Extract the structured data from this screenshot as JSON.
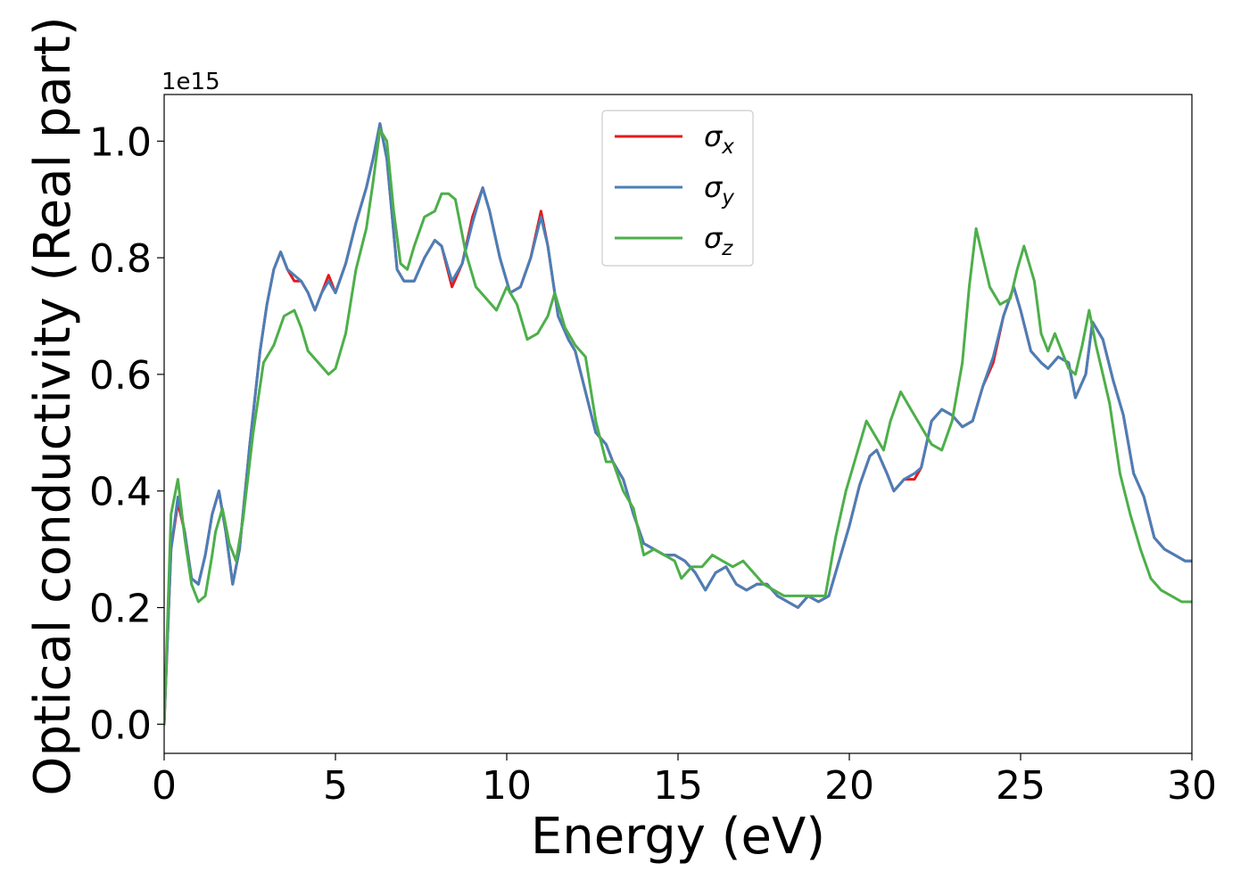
{
  "chart_data": {
    "type": "line",
    "title": "",
    "xlabel": "Energy (eV)",
    "ylabel": "Optical conductivity (Real part)",
    "y_offset_label": "1e15",
    "xlim": [
      0,
      30
    ],
    "ylim": [
      -0.05,
      1.08
    ],
    "xticks": [
      0,
      5,
      10,
      15,
      20,
      25,
      30
    ],
    "xtick_labels": [
      "0",
      "5",
      "10",
      "15",
      "20",
      "25",
      "30"
    ],
    "yticks": [
      0.0,
      0.2,
      0.4,
      0.6,
      0.8,
      1.0
    ],
    "ytick_labels": [
      "0.0",
      "0.2",
      "0.4",
      "0.6",
      "0.8",
      "1.0"
    ],
    "grid": false,
    "legend_position": "top-center",
    "series": [
      {
        "name": "σ_x",
        "label_symbol": "σ",
        "label_sub": "x",
        "color": "#e41a1c",
        "x": [
          0.0,
          0.2,
          0.4,
          0.6,
          0.8,
          1.0,
          1.2,
          1.4,
          1.6,
          1.8,
          2.0,
          2.2,
          2.5,
          2.8,
          3.0,
          3.2,
          3.4,
          3.6,
          3.8,
          4.0,
          4.2,
          4.4,
          4.6,
          4.8,
          5.0,
          5.3,
          5.6,
          5.9,
          6.1,
          6.3,
          6.5,
          6.8,
          7.0,
          7.3,
          7.6,
          7.9,
          8.1,
          8.4,
          8.7,
          9.0,
          9.3,
          9.5,
          9.8,
          10.1,
          10.4,
          10.7,
          11.0,
          11.2,
          11.5,
          11.8,
          12.0,
          12.3,
          12.6,
          12.9,
          13.1,
          13.4,
          13.7,
          14.0,
          14.3,
          14.6,
          14.9,
          15.2,
          15.5,
          15.8,
          16.1,
          16.4,
          16.7,
          17.0,
          17.3,
          17.6,
          17.9,
          18.2,
          18.5,
          18.8,
          19.1,
          19.4,
          19.7,
          20.0,
          20.3,
          20.6,
          20.8,
          21.1,
          21.3,
          21.6,
          21.9,
          22.1,
          22.4,
          22.7,
          23.0,
          23.3,
          23.6,
          23.9,
          24.2,
          24.5,
          24.8,
          25.0,
          25.3,
          25.6,
          25.8,
          26.1,
          26.4,
          26.6,
          26.9,
          27.1,
          27.4,
          27.7,
          28.0,
          28.3,
          28.6,
          28.9,
          29.2,
          29.5,
          29.8,
          30.0
        ],
        "y": [
          0.0,
          0.3,
          0.38,
          0.33,
          0.25,
          0.24,
          0.29,
          0.36,
          0.4,
          0.33,
          0.24,
          0.3,
          0.48,
          0.64,
          0.72,
          0.78,
          0.81,
          0.78,
          0.76,
          0.76,
          0.74,
          0.71,
          0.74,
          0.77,
          0.74,
          0.79,
          0.86,
          0.92,
          0.97,
          1.03,
          0.97,
          0.78,
          0.76,
          0.76,
          0.8,
          0.83,
          0.82,
          0.75,
          0.79,
          0.87,
          0.92,
          0.88,
          0.8,
          0.74,
          0.75,
          0.8,
          0.88,
          0.82,
          0.7,
          0.66,
          0.64,
          0.57,
          0.5,
          0.48,
          0.45,
          0.42,
          0.36,
          0.31,
          0.3,
          0.29,
          0.29,
          0.28,
          0.26,
          0.23,
          0.26,
          0.27,
          0.24,
          0.23,
          0.24,
          0.24,
          0.22,
          0.21,
          0.2,
          0.22,
          0.21,
          0.22,
          0.28,
          0.34,
          0.41,
          0.46,
          0.47,
          0.43,
          0.4,
          0.42,
          0.42,
          0.44,
          0.52,
          0.54,
          0.53,
          0.51,
          0.52,
          0.58,
          0.62,
          0.7,
          0.75,
          0.71,
          0.64,
          0.62,
          0.61,
          0.63,
          0.62,
          0.56,
          0.6,
          0.69,
          0.66,
          0.59,
          0.53,
          0.43,
          0.39,
          0.32,
          0.3,
          0.29,
          0.28,
          0.28
        ]
      },
      {
        "name": "σ_y",
        "label_symbol": "σ",
        "label_sub": "y",
        "color": "#4a7fb8",
        "x": [
          0.0,
          0.2,
          0.4,
          0.6,
          0.8,
          1.0,
          1.2,
          1.4,
          1.6,
          1.8,
          2.0,
          2.2,
          2.5,
          2.8,
          3.0,
          3.2,
          3.4,
          3.6,
          3.8,
          4.0,
          4.2,
          4.4,
          4.6,
          4.8,
          5.0,
          5.3,
          5.6,
          5.9,
          6.1,
          6.3,
          6.5,
          6.8,
          7.0,
          7.3,
          7.6,
          7.9,
          8.1,
          8.4,
          8.7,
          9.0,
          9.3,
          9.5,
          9.8,
          10.1,
          10.4,
          10.7,
          11.0,
          11.2,
          11.5,
          11.8,
          12.0,
          12.3,
          12.6,
          12.9,
          13.1,
          13.4,
          13.7,
          14.0,
          14.3,
          14.6,
          14.9,
          15.2,
          15.5,
          15.8,
          16.1,
          16.4,
          16.7,
          17.0,
          17.3,
          17.6,
          17.9,
          18.2,
          18.5,
          18.8,
          19.1,
          19.4,
          19.7,
          20.0,
          20.3,
          20.6,
          20.8,
          21.1,
          21.3,
          21.6,
          21.9,
          22.1,
          22.4,
          22.7,
          23.0,
          23.3,
          23.6,
          23.9,
          24.2,
          24.5,
          24.8,
          25.0,
          25.3,
          25.6,
          25.8,
          26.1,
          26.4,
          26.6,
          26.9,
          27.1,
          27.4,
          27.7,
          28.0,
          28.3,
          28.6,
          28.9,
          29.2,
          29.5,
          29.8,
          30.0
        ],
        "y": [
          0.0,
          0.3,
          0.39,
          0.33,
          0.25,
          0.24,
          0.29,
          0.36,
          0.4,
          0.33,
          0.24,
          0.3,
          0.48,
          0.64,
          0.72,
          0.78,
          0.81,
          0.78,
          0.77,
          0.76,
          0.74,
          0.71,
          0.74,
          0.76,
          0.74,
          0.79,
          0.86,
          0.92,
          0.97,
          1.03,
          0.97,
          0.78,
          0.76,
          0.76,
          0.8,
          0.83,
          0.82,
          0.76,
          0.79,
          0.86,
          0.92,
          0.88,
          0.8,
          0.74,
          0.75,
          0.8,
          0.87,
          0.82,
          0.7,
          0.66,
          0.64,
          0.57,
          0.5,
          0.48,
          0.45,
          0.42,
          0.36,
          0.31,
          0.3,
          0.29,
          0.29,
          0.28,
          0.26,
          0.23,
          0.26,
          0.27,
          0.24,
          0.23,
          0.24,
          0.24,
          0.22,
          0.21,
          0.2,
          0.22,
          0.21,
          0.22,
          0.28,
          0.34,
          0.41,
          0.46,
          0.47,
          0.43,
          0.4,
          0.42,
          0.43,
          0.44,
          0.52,
          0.54,
          0.53,
          0.51,
          0.52,
          0.58,
          0.63,
          0.7,
          0.75,
          0.71,
          0.64,
          0.62,
          0.61,
          0.63,
          0.62,
          0.56,
          0.6,
          0.69,
          0.66,
          0.59,
          0.53,
          0.43,
          0.39,
          0.32,
          0.3,
          0.29,
          0.28,
          0.28
        ]
      },
      {
        "name": "σ_z",
        "label_symbol": "σ",
        "label_sub": "z",
        "color": "#4daf4a",
        "x": [
          0.0,
          0.2,
          0.4,
          0.6,
          0.8,
          1.0,
          1.2,
          1.4,
          1.5,
          1.7,
          1.9,
          2.1,
          2.3,
          2.6,
          2.9,
          3.2,
          3.5,
          3.8,
          4.0,
          4.2,
          4.5,
          4.8,
          5.0,
          5.3,
          5.6,
          5.9,
          6.1,
          6.3,
          6.5,
          6.7,
          6.9,
          7.1,
          7.3,
          7.6,
          7.9,
          8.1,
          8.3,
          8.5,
          8.8,
          9.1,
          9.4,
          9.7,
          10.0,
          10.3,
          10.6,
          10.9,
          11.2,
          11.4,
          11.7,
          12.0,
          12.3,
          12.6,
          12.9,
          13.1,
          13.4,
          13.7,
          14.0,
          14.3,
          14.6,
          14.9,
          15.1,
          15.4,
          15.7,
          16.0,
          16.3,
          16.6,
          16.9,
          17.2,
          17.5,
          17.8,
          18.1,
          18.4,
          18.7,
          19.0,
          19.3,
          19.6,
          19.9,
          20.2,
          20.5,
          20.7,
          21.0,
          21.2,
          21.5,
          21.8,
          22.1,
          22.4,
          22.7,
          23.0,
          23.3,
          23.5,
          23.7,
          23.9,
          24.1,
          24.4,
          24.7,
          24.9,
          25.1,
          25.4,
          25.6,
          25.8,
          26.0,
          26.2,
          26.4,
          26.6,
          26.8,
          27.0,
          27.2,
          27.4,
          27.6,
          27.9,
          28.2,
          28.5,
          28.8,
          29.1,
          29.4,
          29.7,
          30.0
        ],
        "y": [
          0.0,
          0.36,
          0.42,
          0.32,
          0.24,
          0.21,
          0.22,
          0.29,
          0.33,
          0.37,
          0.31,
          0.28,
          0.35,
          0.5,
          0.62,
          0.65,
          0.7,
          0.71,
          0.68,
          0.64,
          0.62,
          0.6,
          0.61,
          0.67,
          0.78,
          0.85,
          0.93,
          1.02,
          1.0,
          0.88,
          0.79,
          0.78,
          0.82,
          0.87,
          0.88,
          0.91,
          0.91,
          0.9,
          0.81,
          0.75,
          0.73,
          0.71,
          0.75,
          0.72,
          0.66,
          0.67,
          0.7,
          0.74,
          0.68,
          0.65,
          0.63,
          0.52,
          0.45,
          0.45,
          0.4,
          0.37,
          0.29,
          0.3,
          0.29,
          0.28,
          0.25,
          0.27,
          0.27,
          0.29,
          0.28,
          0.27,
          0.28,
          0.26,
          0.24,
          0.23,
          0.22,
          0.22,
          0.22,
          0.22,
          0.22,
          0.32,
          0.4,
          0.46,
          0.52,
          0.5,
          0.47,
          0.52,
          0.57,
          0.54,
          0.51,
          0.48,
          0.47,
          0.52,
          0.62,
          0.75,
          0.85,
          0.8,
          0.75,
          0.72,
          0.73,
          0.78,
          0.82,
          0.76,
          0.67,
          0.64,
          0.67,
          0.64,
          0.61,
          0.6,
          0.65,
          0.71,
          0.65,
          0.6,
          0.55,
          0.43,
          0.36,
          0.3,
          0.25,
          0.23,
          0.22,
          0.21,
          0.21
        ]
      }
    ]
  }
}
